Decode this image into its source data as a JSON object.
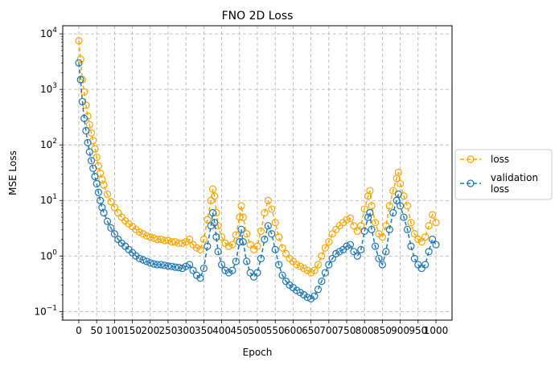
{
  "chart_data": {
    "type": "line",
    "title": "FNO 2D Loss",
    "xlabel": "Epoch",
    "ylabel": "MSE Loss",
    "y_scale": "log",
    "xlim": [
      -45,
      1045
    ],
    "ylim": [
      0.07,
      14000
    ],
    "x_ticks": [
      0,
      50,
      100,
      150,
      200,
      250,
      300,
      350,
      400,
      450,
      500,
      550,
      600,
      650,
      700,
      750,
      800,
      850,
      900,
      950,
      1000
    ],
    "y_ticks": [
      {
        "value": 0.1,
        "base": "10",
        "exp": "−1"
      },
      {
        "value": 1,
        "base": "10",
        "exp": "0"
      },
      {
        "value": 10,
        "base": "10",
        "exp": "1"
      },
      {
        "value": 100,
        "base": "10",
        "exp": "2"
      },
      {
        "value": 1000,
        "base": "10",
        "exp": "3"
      },
      {
        "value": 10000,
        "base": "10",
        "exp": "4"
      }
    ],
    "grid": true,
    "legend_position": "right, outside plot",
    "series": [
      {
        "name": "loss",
        "color": "#ffa500",
        "style": "dashed line, hollow circle markers",
        "points": [
          [
            0,
            7500
          ],
          [
            5,
            3500
          ],
          [
            10,
            1500
          ],
          [
            15,
            900
          ],
          [
            20,
            520
          ],
          [
            25,
            330
          ],
          [
            30,
            230
          ],
          [
            35,
            165
          ],
          [
            40,
            120
          ],
          [
            45,
            85
          ],
          [
            50,
            60
          ],
          [
            55,
            42
          ],
          [
            60,
            31
          ],
          [
            65,
            24
          ],
          [
            70,
            19
          ],
          [
            80,
            13
          ],
          [
            90,
            9.5
          ],
          [
            100,
            7.5
          ],
          [
            110,
            6.0
          ],
          [
            120,
            5.0
          ],
          [
            130,
            4.3
          ],
          [
            140,
            3.8
          ],
          [
            150,
            3.4
          ],
          [
            160,
            3.0
          ],
          [
            170,
            2.7
          ],
          [
            180,
            2.5
          ],
          [
            190,
            2.3
          ],
          [
            200,
            2.2
          ],
          [
            210,
            2.1
          ],
          [
            220,
            2.0
          ],
          [
            230,
            2.0
          ],
          [
            240,
            1.9
          ],
          [
            250,
            1.9
          ],
          [
            260,
            1.8
          ],
          [
            270,
            1.8
          ],
          [
            280,
            1.7
          ],
          [
            290,
            1.7
          ],
          [
            300,
            1.8
          ],
          [
            310,
            2.0
          ],
          [
            320,
            1.6
          ],
          [
            330,
            1.4
          ],
          [
            340,
            1.3
          ],
          [
            350,
            2.0
          ],
          [
            360,
            4.5
          ],
          [
            370,
            10
          ],
          [
            375,
            16
          ],
          [
            380,
            12
          ],
          [
            385,
            6
          ],
          [
            390,
            3.5
          ],
          [
            400,
            2.2
          ],
          [
            410,
            1.7
          ],
          [
            420,
            1.5
          ],
          [
            430,
            1.6
          ],
          [
            440,
            2.4
          ],
          [
            450,
            5
          ],
          [
            455,
            8
          ],
          [
            460,
            5
          ],
          [
            470,
            2.5
          ],
          [
            480,
            1.6
          ],
          [
            490,
            1.3
          ],
          [
            500,
            1.5
          ],
          [
            510,
            2.8
          ],
          [
            520,
            6
          ],
          [
            530,
            10
          ],
          [
            540,
            7
          ],
          [
            550,
            4
          ],
          [
            560,
            2.2
          ],
          [
            570,
            1.4
          ],
          [
            580,
            1.1
          ],
          [
            590,
            0.9
          ],
          [
            600,
            0.8
          ],
          [
            610,
            0.7
          ],
          [
            620,
            0.65
          ],
          [
            630,
            0.6
          ],
          [
            640,
            0.55
          ],
          [
            650,
            0.5
          ],
          [
            660,
            0.55
          ],
          [
            670,
            0.7
          ],
          [
            680,
            1.0
          ],
          [
            690,
            1.4
          ],
          [
            700,
            1.8
          ],
          [
            710,
            2.5
          ],
          [
            720,
            3.0
          ],
          [
            730,
            3.5
          ],
          [
            740,
            4.0
          ],
          [
            750,
            4.5
          ],
          [
            760,
            4.8
          ],
          [
            770,
            3.5
          ],
          [
            780,
            2.8
          ],
          [
            790,
            3.5
          ],
          [
            800,
            7
          ],
          [
            810,
            12
          ],
          [
            815,
            15
          ],
          [
            820,
            8
          ],
          [
            830,
            4
          ],
          [
            840,
            2.5
          ],
          [
            850,
            2.2
          ],
          [
            860,
            3.5
          ],
          [
            870,
            8
          ],
          [
            880,
            15
          ],
          [
            890,
            25
          ],
          [
            895,
            32
          ],
          [
            900,
            20
          ],
          [
            910,
            12
          ],
          [
            920,
            8
          ],
          [
            930,
            4
          ],
          [
            940,
            2.5
          ],
          [
            950,
            2.0
          ],
          [
            960,
            1.8
          ],
          [
            970,
            2.2
          ],
          [
            980,
            3.5
          ],
          [
            990,
            5.5
          ],
          [
            1000,
            4
          ]
        ]
      },
      {
        "name": "validation\nloss",
        "color": "#1f77b4",
        "style": "dashed line, hollow circle markers",
        "points": [
          [
            0,
            3000
          ],
          [
            5,
            1500
          ],
          [
            10,
            600
          ],
          [
            15,
            300
          ],
          [
            20,
            180
          ],
          [
            25,
            110
          ],
          [
            30,
            75
          ],
          [
            35,
            52
          ],
          [
            40,
            38
          ],
          [
            45,
            27
          ],
          [
            50,
            20
          ],
          [
            55,
            14
          ],
          [
            60,
            10
          ],
          [
            65,
            7.5
          ],
          [
            70,
            6
          ],
          [
            80,
            4.2
          ],
          [
            90,
            3.2
          ],
          [
            100,
            2.5
          ],
          [
            110,
            2.0
          ],
          [
            120,
            1.7
          ],
          [
            130,
            1.5
          ],
          [
            140,
            1.3
          ],
          [
            150,
            1.15
          ],
          [
            160,
            1.0
          ],
          [
            170,
            0.9
          ],
          [
            180,
            0.85
          ],
          [
            190,
            0.8
          ],
          [
            200,
            0.75
          ],
          [
            210,
            0.72
          ],
          [
            220,
            0.7
          ],
          [
            230,
            0.7
          ],
          [
            240,
            0.68
          ],
          [
            250,
            0.66
          ],
          [
            260,
            0.65
          ],
          [
            270,
            0.63
          ],
          [
            280,
            0.62
          ],
          [
            290,
            0.6
          ],
          [
            300,
            0.65
          ],
          [
            310,
            0.7
          ],
          [
            320,
            0.55
          ],
          [
            330,
            0.45
          ],
          [
            340,
            0.4
          ],
          [
            350,
            0.6
          ],
          [
            360,
            1.5
          ],
          [
            370,
            3.5
          ],
          [
            375,
            6
          ],
          [
            380,
            4
          ],
          [
            385,
            2.2
          ],
          [
            390,
            1.2
          ],
          [
            400,
            0.7
          ],
          [
            410,
            0.55
          ],
          [
            420,
            0.5
          ],
          [
            430,
            0.55
          ],
          [
            440,
            0.8
          ],
          [
            450,
            1.8
          ],
          [
            455,
            3
          ],
          [
            460,
            1.8
          ],
          [
            470,
            0.8
          ],
          [
            480,
            0.5
          ],
          [
            490,
            0.42
          ],
          [
            500,
            0.5
          ],
          [
            510,
            0.9
          ],
          [
            520,
            2.0
          ],
          [
            530,
            3.5
          ],
          [
            540,
            2.5
          ],
          [
            550,
            1.3
          ],
          [
            560,
            0.7
          ],
          [
            570,
            0.45
          ],
          [
            580,
            0.35
          ],
          [
            590,
            0.3
          ],
          [
            600,
            0.27
          ],
          [
            610,
            0.24
          ],
          [
            620,
            0.22
          ],
          [
            630,
            0.2
          ],
          [
            640,
            0.18
          ],
          [
            650,
            0.17
          ],
          [
            660,
            0.19
          ],
          [
            670,
            0.25
          ],
          [
            680,
            0.35
          ],
          [
            690,
            0.5
          ],
          [
            700,
            0.7
          ],
          [
            710,
            0.9
          ],
          [
            720,
            1.1
          ],
          [
            730,
            1.2
          ],
          [
            740,
            1.3
          ],
          [
            750,
            1.5
          ],
          [
            760,
            1.6
          ],
          [
            770,
            1.2
          ],
          [
            780,
            1.0
          ],
          [
            790,
            1.3
          ],
          [
            800,
            2.8
          ],
          [
            810,
            5
          ],
          [
            815,
            6
          ],
          [
            820,
            3
          ],
          [
            830,
            1.5
          ],
          [
            840,
            0.9
          ],
          [
            850,
            0.7
          ],
          [
            860,
            1.2
          ],
          [
            870,
            3
          ],
          [
            880,
            6
          ],
          [
            890,
            10
          ],
          [
            895,
            13
          ],
          [
            900,
            8
          ],
          [
            910,
            5
          ],
          [
            920,
            3
          ],
          [
            930,
            1.5
          ],
          [
            940,
            0.9
          ],
          [
            950,
            0.7
          ],
          [
            960,
            0.6
          ],
          [
            970,
            0.7
          ],
          [
            980,
            1.2
          ],
          [
            990,
            2.0
          ],
          [
            1000,
            1.6
          ]
        ]
      }
    ]
  }
}
